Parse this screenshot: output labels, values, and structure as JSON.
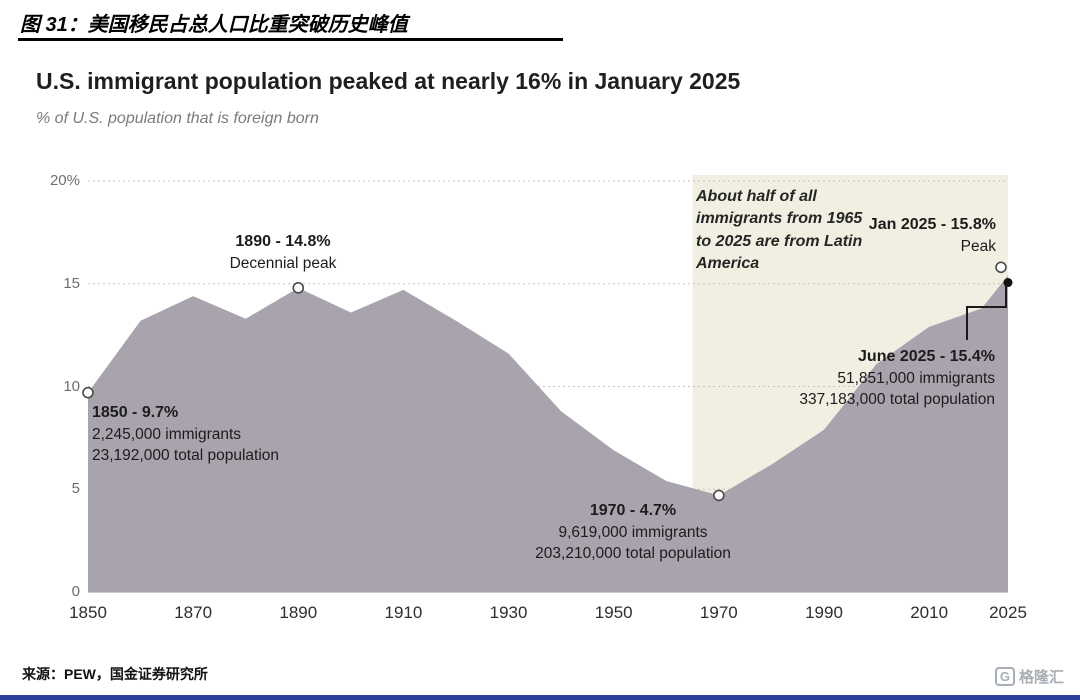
{
  "header": {
    "figure_title": "图 31：美国移民占总人口比重突破历史峰值"
  },
  "chart_data": {
    "type": "area",
    "title": "U.S. immigrant population peaked at nearly 16% in January 2025",
    "subtitle": "% of U.S. population that is foreign born",
    "xlim": [
      1850,
      2025
    ],
    "ylim": [
      0,
      20
    ],
    "x": [
      1850,
      1860,
      1870,
      1880,
      1890,
      1900,
      1910,
      1920,
      1930,
      1940,
      1950,
      1960,
      1970,
      1980,
      1990,
      2000,
      2010,
      2020,
      2025
    ],
    "values": [
      9.7,
      13.2,
      14.4,
      13.3,
      14.8,
      13.6,
      14.7,
      13.2,
      11.6,
      8.8,
      6.9,
      5.4,
      4.7,
      6.2,
      7.9,
      11.1,
      12.9,
      13.8,
      15.4
    ],
    "x_ticks": [
      "1850",
      "1870",
      "1890",
      "1910",
      "1930",
      "1950",
      "1970",
      "1990",
      "2010",
      "2025"
    ],
    "y_ticks": [
      {
        "value": 20,
        "label": "20%"
      },
      {
        "value": 15,
        "label": "15"
      },
      {
        "value": 10,
        "label": "10"
      },
      {
        "value": 5,
        "label": "5"
      },
      {
        "value": 0,
        "label": "0"
      }
    ],
    "grid": "horizontal-dotted",
    "legend": "none",
    "area_color": "#a9a3ae",
    "highlight_region": {
      "from": 1965,
      "to": 2025,
      "color": "#f1efe2",
      "note": "About half of all immigrants from 1965 to 2025 are from Latin America"
    },
    "markers": [
      {
        "year": 1850,
        "value": 9.7,
        "style": "open"
      },
      {
        "year": 1890,
        "value": 14.8,
        "style": "open"
      },
      {
        "year": 1970,
        "value": 4.7,
        "style": "open"
      },
      {
        "year": 2025,
        "value": 15.8,
        "style": "open",
        "dx": -7
      },
      {
        "year": 2025,
        "value": 15.4,
        "style": "filled",
        "dy": 7
      }
    ],
    "annotations": {
      "peak_1890": {
        "title": "1890 - 14.8%",
        "sub": "Decennial peak"
      },
      "start_1850": {
        "title": "1850 - 9.7%",
        "line2": "2,245,000 immigrants",
        "line3": "23,192,000 total population"
      },
      "low_1970": {
        "title": "1970 - 4.7%",
        "line2": "9,619,000 immigrants",
        "line3": "203,210,000 total population"
      },
      "jan_2025": {
        "title": "Jan 2025 - 15.8%",
        "sub": "Peak"
      },
      "june_2025": {
        "title": "June 2025 - 15.4%",
        "line2": "51,851,000 immigrants",
        "line3": "337,183,000 total population"
      }
    }
  },
  "footer": {
    "source": "来源：PEW，国金证券研究所",
    "logo_g": "G",
    "logo_text": "格隆汇"
  }
}
